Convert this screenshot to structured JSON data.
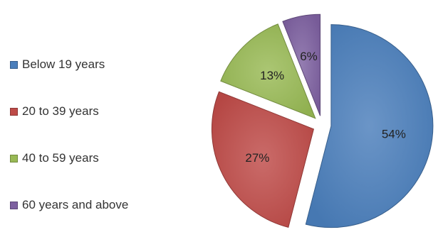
{
  "chart_data": {
    "type": "pie",
    "title": "",
    "categories": [
      "Below 19 years",
      "20 to 39 years",
      "40 to 59 years",
      "60 years and above"
    ],
    "values": [
      54,
      27,
      13,
      6
    ],
    "labels": [
      "54%",
      "27%",
      "13%",
      "6%"
    ],
    "colors": [
      "#4a7ebb",
      "#be4b48",
      "#98b954",
      "#7d60a0"
    ],
    "exploded": true,
    "legend_position": "left",
    "data_labels": true
  }
}
